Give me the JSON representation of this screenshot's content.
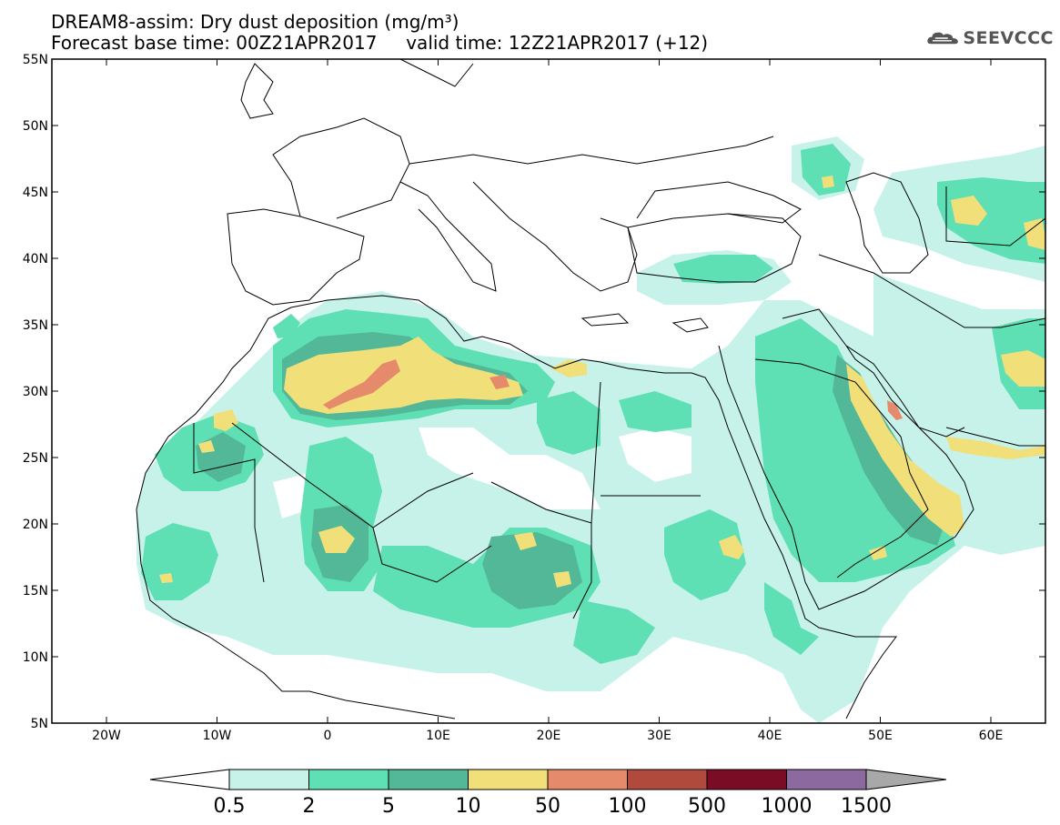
{
  "title": {
    "line1": "DREAM8-assim: Dry dust deposition (mg/m³)",
    "line2": "Forecast base time: 00Z21APR2017     valid time: 12Z21APR2017 (+12)"
  },
  "logo_text": "SEEVCCC",
  "lat_labels": [
    "55N",
    "50N",
    "45N",
    "40N",
    "35N",
    "30N",
    "25N",
    "20N",
    "15N",
    "10N",
    "5N"
  ],
  "lon_labels": [
    "20W",
    "10W",
    "0",
    "10E",
    "20E",
    "30E",
    "40E",
    "50E",
    "60E"
  ],
  "colorbar": {
    "labels": [
      "0.5",
      "2",
      "5",
      "10",
      "50",
      "100",
      "500",
      "1000",
      "1500"
    ],
    "colors": [
      "#c6f2ea",
      "#5fe0b4",
      "#52b898",
      "#f1e07a",
      "#e58a6a",
      "#b04a3c",
      "#7a0c26",
      "#8c6aa0",
      "#a8a8a8"
    ]
  },
  "colors": {
    "c1": "#c6f2ea",
    "c2": "#5fe0b4",
    "c3": "#52b898",
    "c4": "#f1e07a",
    "c5": "#e58a6a"
  }
}
